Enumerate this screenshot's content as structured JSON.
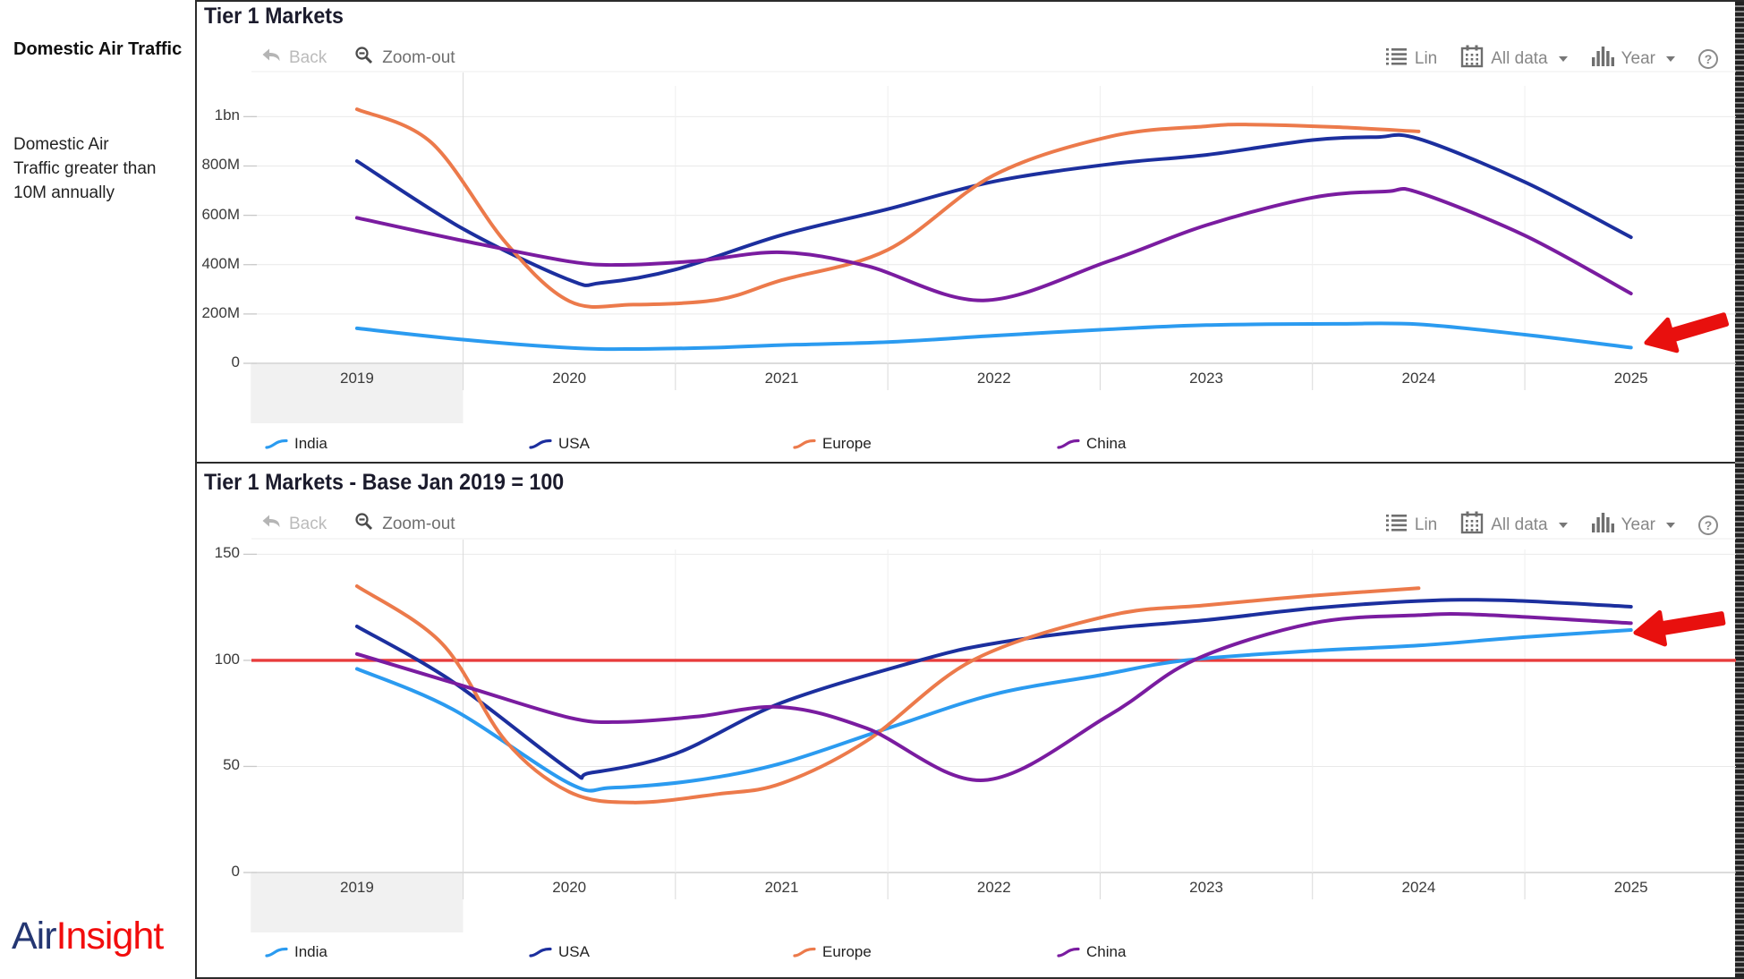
{
  "sidebar": {
    "title": "Domestic Air Traffic",
    "description": "Domestic Air Traffic greater than 10M annually",
    "logo": {
      "part1": "Air",
      "part2": "Insight",
      "part1_color": "#243672",
      "part2_color": "#F20D0D"
    }
  },
  "toolbar": {
    "back": "Back",
    "zoom_out": "Zoom-out",
    "lin": "Lin",
    "all_data": "All data",
    "year": "Year",
    "help": "?"
  },
  "chart_data": [
    {
      "type": "line",
      "title": "Tier 1 Markets",
      "highlighted_year": "2019",
      "x_axis": {
        "labels": [
          "2019",
          "2020",
          "2021",
          "2022",
          "2023",
          "2024",
          "2025"
        ]
      },
      "y_axis": {
        "ticks": [
          {
            "label": "1bn",
            "value": 1000
          },
          {
            "label": "800M",
            "value": 800
          },
          {
            "label": "600M",
            "value": 600
          },
          {
            "label": "400M",
            "value": 400
          },
          {
            "label": "200M",
            "value": 200
          },
          {
            "label": "0",
            "value": 0
          }
        ],
        "range": [
          0,
          1120
        ]
      },
      "series": [
        {
          "name": "India",
          "color": "#2B9BF0",
          "points": [
            [
              2019,
              142
            ],
            [
              2019.5,
              96
            ],
            [
              2020,
              63
            ],
            [
              2020.3,
              58
            ],
            [
              2020.7,
              64
            ],
            [
              2021,
              74
            ],
            [
              2021.5,
              86
            ],
            [
              2022,
              112
            ],
            [
              2022.5,
              136
            ],
            [
              2023,
              155
            ],
            [
              2023.6,
              160
            ],
            [
              2024,
              158
            ],
            [
              2024.5,
              116
            ],
            [
              2025,
              64
            ]
          ]
        },
        {
          "name": "USA",
          "color": "#1C2F9E",
          "points": [
            [
              2019,
              820
            ],
            [
              2019.5,
              545
            ],
            [
              2020,
              338
            ],
            [
              2020.15,
              326
            ],
            [
              2020.5,
              380
            ],
            [
              2021,
              520
            ],
            [
              2021.5,
              625
            ],
            [
              2022,
              737
            ],
            [
              2022.55,
              808
            ],
            [
              2023,
              845
            ],
            [
              2023.5,
              905
            ],
            [
              2023.8,
              917
            ],
            [
              2024,
              910
            ],
            [
              2024.5,
              735
            ],
            [
              2025,
              511
            ]
          ]
        },
        {
          "name": "Europe",
          "color": "#EC7A4B",
          "points": [
            [
              2019,
              1030
            ],
            [
              2019.35,
              895
            ],
            [
              2019.7,
              490
            ],
            [
              2020,
              252
            ],
            [
              2020.3,
              238
            ],
            [
              2020.7,
              258
            ],
            [
              2021,
              337
            ],
            [
              2021.5,
              460
            ],
            [
              2022,
              763
            ],
            [
              2022.55,
              920
            ],
            [
              2023,
              961
            ],
            [
              2023.2,
              968
            ],
            [
              2023.6,
              958
            ],
            [
              2024,
              940
            ]
          ]
        },
        {
          "name": "China",
          "color": "#7A1CA0",
          "points": [
            [
              2019,
              590
            ],
            [
              2019.5,
              497
            ],
            [
              2020,
              413
            ],
            [
              2020.25,
              399
            ],
            [
              2020.6,
              415
            ],
            [
              2021,
              450
            ],
            [
              2021.4,
              395
            ],
            [
              2021.95,
              255
            ],
            [
              2022.54,
              414
            ],
            [
              2023,
              560
            ],
            [
              2023.5,
              672
            ],
            [
              2023.85,
              697
            ],
            [
              2024,
              692
            ],
            [
              2024.5,
              518
            ],
            [
              2025,
              283
            ]
          ]
        }
      ],
      "annotation_arrow": {
        "color": "#E8100E",
        "points_at": "India series end"
      }
    },
    {
      "type": "line",
      "title": "Tier 1 Markets - Base Jan 2019 = 100",
      "highlighted_year": "2019",
      "baseline": {
        "value": 100,
        "color": "#E83C3C"
      },
      "x_axis": {
        "labels": [
          "2019",
          "2020",
          "2021",
          "2022",
          "2023",
          "2024",
          "2025"
        ]
      },
      "y_axis": {
        "ticks": [
          {
            "label": "150",
            "value": 150
          },
          {
            "label": "100",
            "value": 100
          },
          {
            "label": "50",
            "value": 50
          },
          {
            "label": "0",
            "value": 0
          }
        ],
        "range": [
          0,
          160
        ]
      },
      "series": [
        {
          "name": "India",
          "color": "#2B9BF0",
          "points": [
            [
              2019,
              96
            ],
            [
              2019.45,
              77
            ],
            [
              2020,
              42
            ],
            [
              2020.2,
              40
            ],
            [
              2020.6,
              43.5
            ],
            [
              2021,
              51.5
            ],
            [
              2021.5,
              68
            ],
            [
              2022,
              84
            ],
            [
              2022.5,
              93
            ],
            [
              2022.9,
              100
            ],
            [
              2023.5,
              104.5
            ],
            [
              2024,
              107
            ],
            [
              2024.5,
              111
            ],
            [
              2025,
              114.3
            ]
          ]
        },
        {
          "name": "USA",
          "color": "#1C2F9E",
          "points": [
            [
              2019,
              116
            ],
            [
              2019.45,
              90
            ],
            [
              2020,
              48.5
            ],
            [
              2020.1,
              47
            ],
            [
              2020.5,
              56
            ],
            [
              2021,
              80
            ],
            [
              2021.65,
              100
            ],
            [
              2022,
              108
            ],
            [
              2022.54,
              115
            ],
            [
              2023,
              119
            ],
            [
              2023.5,
              124.5
            ],
            [
              2024,
              128
            ],
            [
              2024.4,
              128.3
            ],
            [
              2025,
              125.3
            ]
          ]
        },
        {
          "name": "Europe",
          "color": "#EC7A4B",
          "points": [
            [
              2019,
              135
            ],
            [
              2019.4,
              108
            ],
            [
              2019.7,
              62
            ],
            [
              2020,
              38
            ],
            [
              2020.3,
              33
            ],
            [
              2020.7,
              37
            ],
            [
              2021,
              42
            ],
            [
              2021.4,
              62
            ],
            [
              2021.9,
              100
            ],
            [
              2022.54,
              121
            ],
            [
              2023,
              126
            ],
            [
              2023.5,
              130.5
            ],
            [
              2024,
              134
            ]
          ]
        },
        {
          "name": "China",
          "color": "#7A1CA0",
          "points": [
            [
              2019,
              103
            ],
            [
              2019.5,
              88
            ],
            [
              2020,
              73
            ],
            [
              2020.25,
              71
            ],
            [
              2020.6,
              73.5
            ],
            [
              2021,
              78
            ],
            [
              2021.4,
              68
            ],
            [
              2021.95,
              43.5
            ],
            [
              2022.54,
              74
            ],
            [
              2022.94,
              100
            ],
            [
              2023.5,
              117.5
            ],
            [
              2024,
              121.3
            ],
            [
              2024.3,
              121.5
            ],
            [
              2025,
              117.5
            ]
          ]
        }
      ],
      "annotation_arrow": {
        "color": "#E8100E",
        "points_at": "India series end"
      }
    }
  ]
}
